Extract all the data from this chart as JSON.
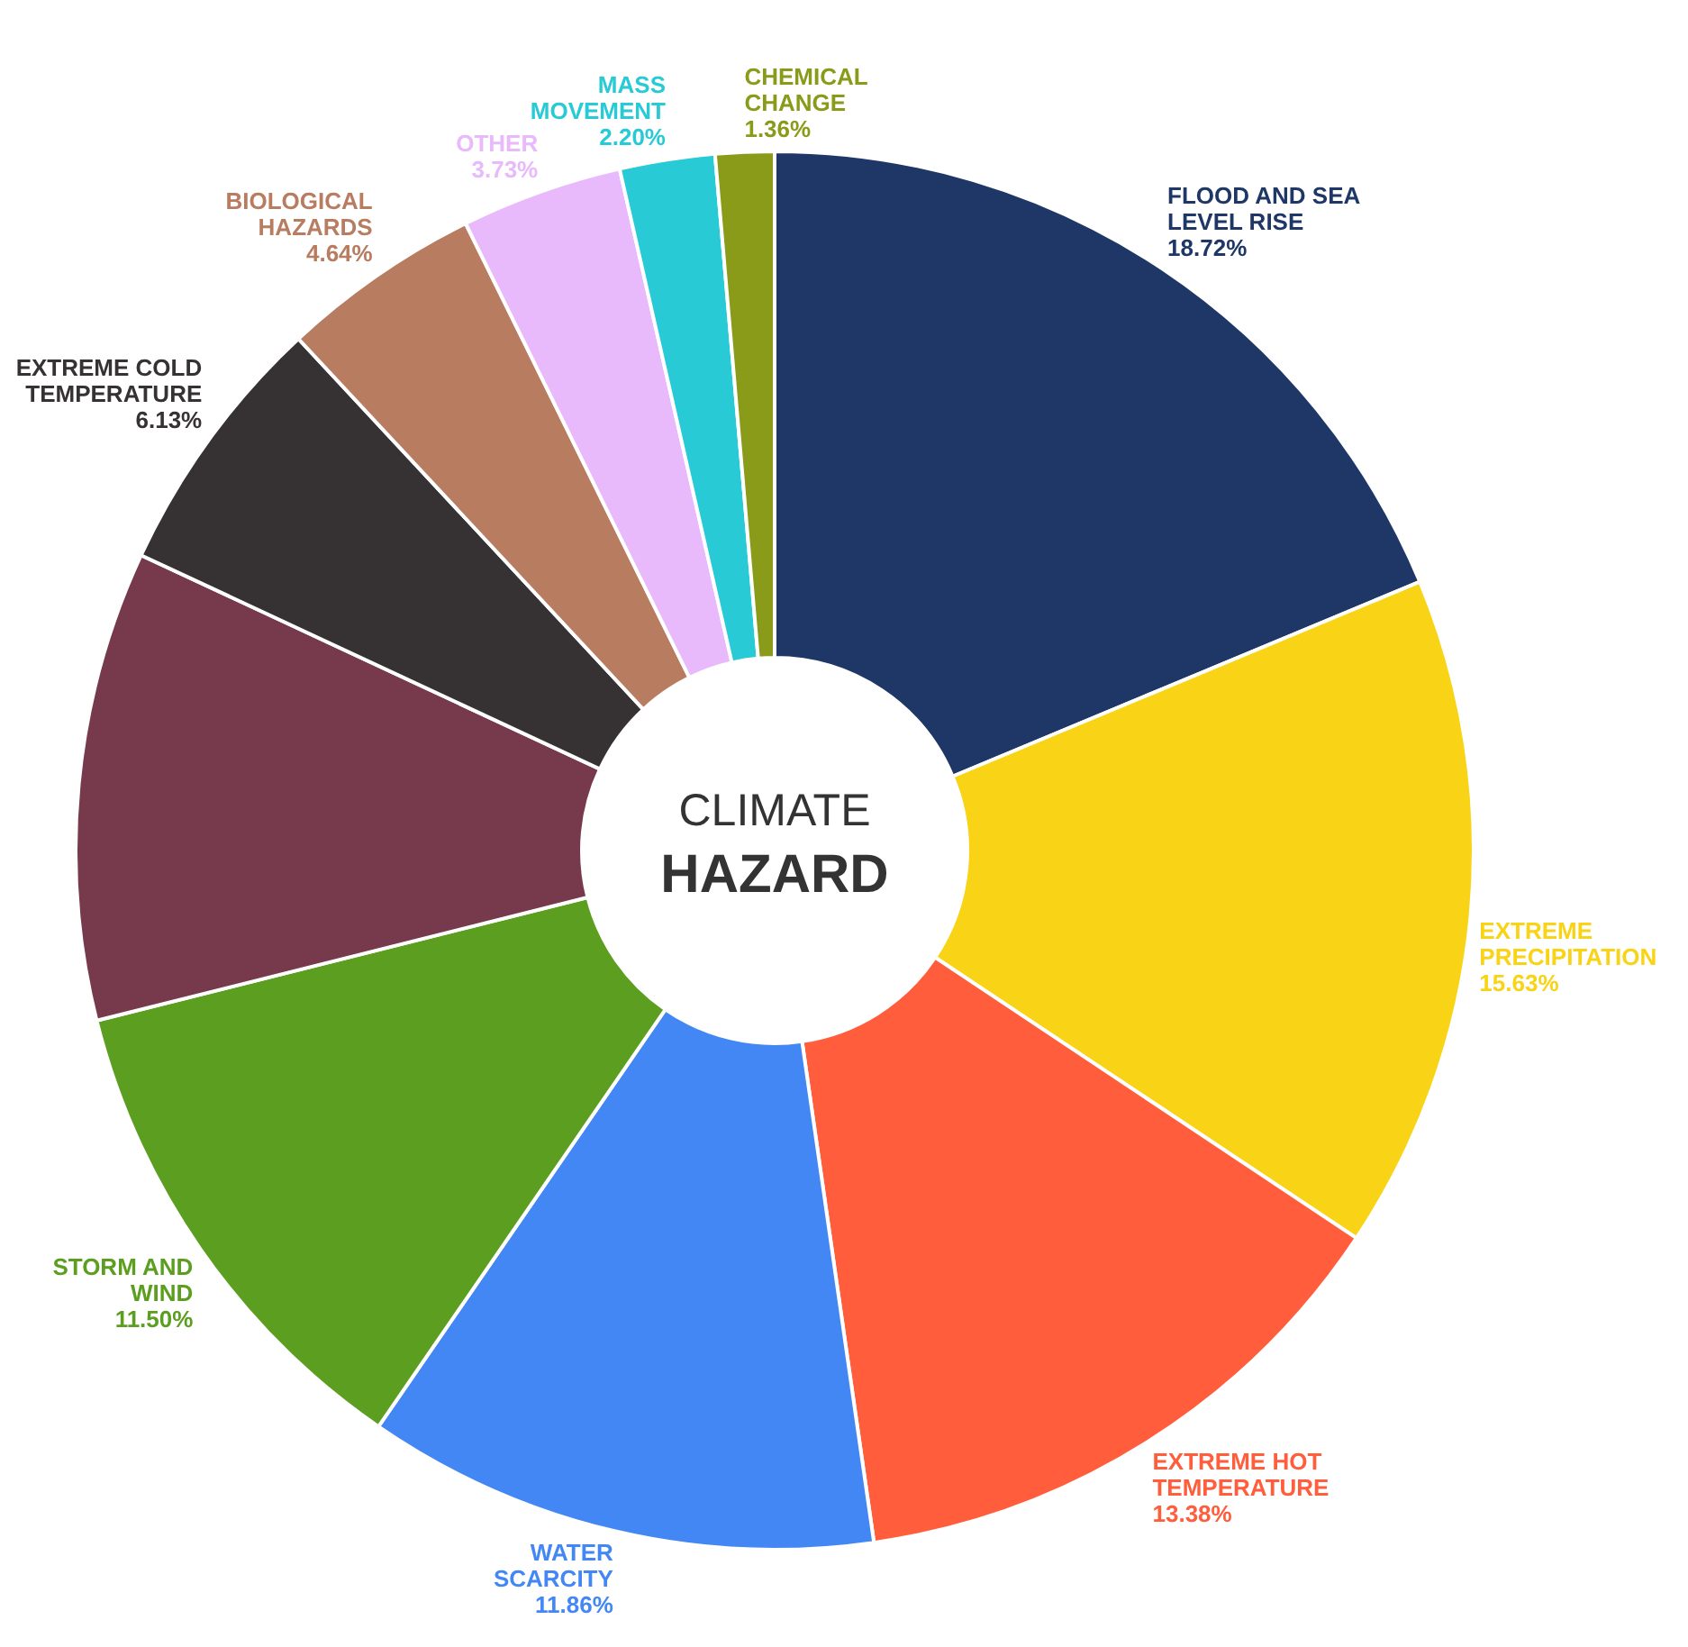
{
  "chart_data": {
    "type": "donut",
    "title": "CLIMATE HAZARD",
    "categories": [
      "FLOOD AND SEA LEVEL RISE",
      "EXTREME PRECIPITATION",
      "EXTREME HOT TEMPERATURE",
      "WATER SCARCITY",
      "STORM AND WIND",
      null,
      "EXTREME COLD TEMPERATURE",
      "BIOLOGICAL HAZARDS",
      "OTHER",
      "MASS MOVEMENT",
      "CHEMICAL CHANGE"
    ],
    "values": [
      18.72,
      15.63,
      13.38,
      11.86,
      11.5,
      10.85,
      6.13,
      4.64,
      3.73,
      2.2,
      1.36
    ],
    "value_labels": [
      "18.72%",
      "15.63%",
      "13.38%",
      "11.86%",
      "11.50%",
      null,
      "6.13%",
      "4.64%",
      "3.73%",
      "2.20%",
      "1.36%"
    ],
    "colors": [
      "#1e3766",
      "#f9d315",
      "#ff5d3b",
      "#4387f4",
      "#5c9e1f",
      "#773a4d",
      "#363132",
      "#b87c61",
      "#e8b9fb",
      "#27cad5",
      "#8a9b1a"
    ]
  }
}
